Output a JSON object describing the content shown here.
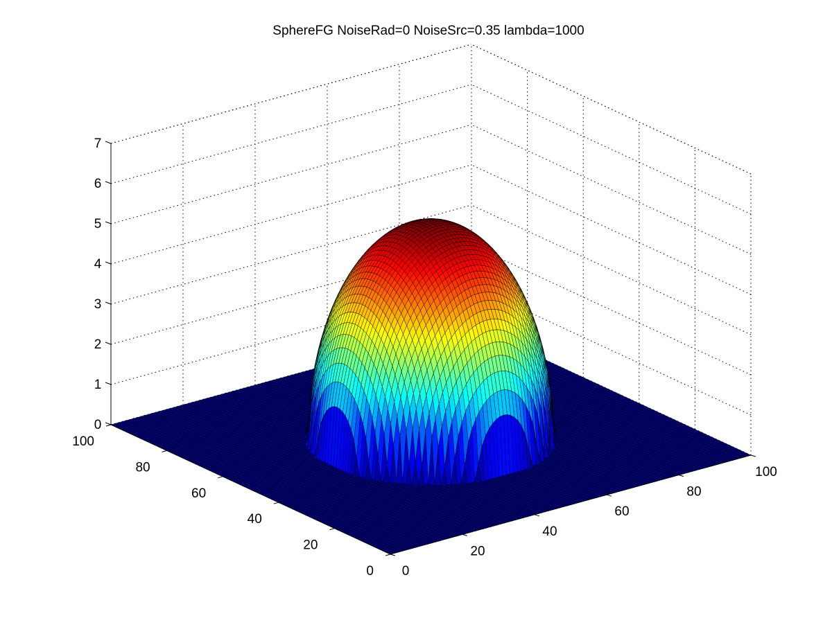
{
  "chart_data": {
    "type": "surface3d",
    "title": "SphereFG NoiseRad=0 NoiseSrc=0.35 lambda=1000",
    "colormap": "jet",
    "grid": true,
    "xlim": [
      0,
      100
    ],
    "ylim": [
      0,
      100
    ],
    "zlim": [
      0,
      7
    ],
    "x_ticks": [
      0,
      20,
      40,
      60,
      80,
      100
    ],
    "x_tick_labels": [
      "0",
      "20",
      "40",
      "60",
      "80",
      "100"
    ],
    "y_ticks": [
      0,
      20,
      40,
      60,
      80,
      100
    ],
    "y_tick_labels": [
      "0",
      "20",
      "40",
      "60",
      "80",
      "100"
    ],
    "z_ticks": [
      0,
      1,
      2,
      3,
      4,
      5,
      6,
      7
    ],
    "z_tick_labels": [
      "0",
      "1",
      "2",
      "3",
      "4",
      "5",
      "6",
      "7"
    ],
    "surface": {
      "shape": "spherical cap on flat plane",
      "center_x": 50,
      "center_y": 50,
      "radius": 27,
      "peak_z": 5.4,
      "base_z": 0
    }
  }
}
